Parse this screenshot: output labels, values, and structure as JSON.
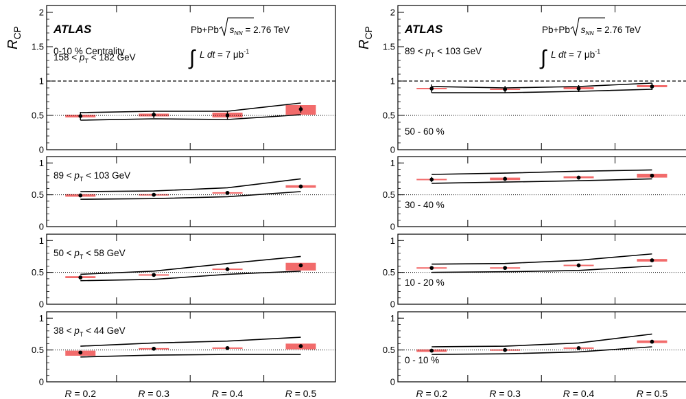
{
  "figure": {
    "experiment": "ATLAS",
    "system": "Pb+Pb",
    "energy_prefix": "s",
    "energy_sub": "NN",
    "energy_value": "= 2.76 TeV",
    "lumi_text": "L dt = 7 μb",
    "lumi_exp": "-1",
    "ylabel_main": "R",
    "ylabel_sub": "CP",
    "x_labels_prefix": "R",
    "left_header": "0-10 % Centrality",
    "right_header_pt": "89 < p_T < 103 GeV"
  },
  "chart_data": [
    {
      "type": "scatter",
      "column": "left",
      "label": "158 < p_T < 182 GeV",
      "categories": [
        "= 0.2",
        "= 0.3",
        "= 0.4",
        "= 0.5"
      ],
      "ylim": [
        0,
        2.1
      ],
      "yticks": [
        0,
        0.5,
        1,
        1.5,
        2
      ],
      "ytick_labels": [
        "0",
        "0.5",
        "1",
        "1.5",
        "2"
      ],
      "values": [
        0.49,
        0.51,
        0.5,
        0.59
      ],
      "stat_err": [
        0.06,
        0.05,
        0.06,
        0.05
      ],
      "sys_box": [
        [
          0.47,
          0.51
        ],
        [
          0.485,
          0.525
        ],
        [
          0.47,
          0.54
        ],
        [
          0.51,
          0.65
        ]
      ],
      "band_upper": [
        0.54,
        0.56,
        0.56,
        0.68
      ],
      "band_lower": [
        0.43,
        0.45,
        0.44,
        0.51
      ],
      "reference_lines": {
        "dashed": 1.0,
        "dotted": 0.5
      }
    },
    {
      "type": "scatter",
      "column": "left",
      "label": "89 < p_T < 103 GeV",
      "categories": [
        "= 0.2",
        "= 0.3",
        "= 0.4",
        "= 0.5"
      ],
      "ylim": [
        0,
        1.1
      ],
      "yticks": [
        0,
        0.5,
        1
      ],
      "ytick_labels": [
        "0",
        "0.5",
        "1"
      ],
      "values": [
        0.49,
        0.5,
        0.53,
        0.63
      ],
      "stat_err": [
        0.01,
        0.01,
        0.01,
        0.01
      ],
      "sys_box": [
        [
          0.47,
          0.51
        ],
        [
          0.49,
          0.51
        ],
        [
          0.52,
          0.54
        ],
        [
          0.61,
          0.65
        ]
      ],
      "band_upper": [
        0.55,
        0.56,
        0.61,
        0.75
      ],
      "band_lower": [
        0.43,
        0.44,
        0.47,
        0.55
      ],
      "reference_lines": {
        "dotted": 0.5
      }
    },
    {
      "type": "scatter",
      "column": "left",
      "label": "50 < p_T < 58 GeV",
      "categories": [
        "= 0.2",
        "= 0.3",
        "= 0.4",
        "= 0.5"
      ],
      "ylim": [
        0,
        1.1
      ],
      "yticks": [
        0,
        0.5,
        1
      ],
      "ytick_labels": [
        "0",
        "0.5",
        "1"
      ],
      "values": [
        0.42,
        0.46,
        0.55,
        0.61
      ],
      "stat_err": [
        0.01,
        0.01,
        0.01,
        0.01
      ],
      "sys_box": [
        [
          0.41,
          0.44
        ],
        [
          0.45,
          0.47
        ],
        [
          0.54,
          0.56
        ],
        [
          0.53,
          0.65
        ]
      ],
      "band_upper": [
        0.47,
        0.52,
        0.64,
        0.75
      ],
      "band_lower": [
        0.37,
        0.39,
        0.47,
        0.52
      ],
      "reference_lines": {
        "dotted": 0.5
      }
    },
    {
      "type": "scatter",
      "column": "left",
      "label": "38 < p_T < 44 GeV",
      "categories": [
        "= 0.2",
        "= 0.3",
        "= 0.4",
        "= 0.5"
      ],
      "ylim": [
        0,
        1.1
      ],
      "yticks": [
        0,
        0.5,
        1
      ],
      "ytick_labels": [
        "0",
        "0.5",
        "1"
      ],
      "values": [
        0.46,
        0.52,
        0.53,
        0.56
      ],
      "stat_err": [
        0.01,
        0.01,
        0.01,
        0.01
      ],
      "sys_box": [
        [
          0.41,
          0.49
        ],
        [
          0.51,
          0.53
        ],
        [
          0.52,
          0.54
        ],
        [
          0.51,
          0.6
        ]
      ],
      "band_upper": [
        0.56,
        0.61,
        0.64,
        0.7
      ],
      "band_lower": [
        0.39,
        0.42,
        0.43,
        0.43
      ],
      "reference_lines": {
        "dotted": 0.5
      }
    },
    {
      "type": "scatter",
      "column": "right",
      "label": "50 - 60 %",
      "categories": [
        "= 0.2",
        "= 0.3",
        "= 0.4",
        "= 0.5"
      ],
      "ylim": [
        0,
        2.1
      ],
      "yticks": [
        0,
        0.5,
        1,
        1.5,
        2
      ],
      "ytick_labels": [
        "0",
        "0.5",
        "1",
        "1.5",
        "2"
      ],
      "values": [
        0.89,
        0.88,
        0.89,
        0.92
      ],
      "stat_err": [
        0.06,
        0.05,
        0.05,
        0.05
      ],
      "sys_box": [
        [
          0.88,
          0.9
        ],
        [
          0.87,
          0.89
        ],
        [
          0.88,
          0.91
        ],
        [
          0.91,
          0.94
        ]
      ],
      "band_upper": [
        0.92,
        0.9,
        0.92,
        0.97
      ],
      "band_lower": [
        0.83,
        0.83,
        0.85,
        0.88
      ],
      "reference_lines": {
        "dashed": 1.0,
        "dotted": 0.5
      }
    },
    {
      "type": "scatter",
      "column": "right",
      "label": "30 - 40 %",
      "categories": [
        "= 0.2",
        "= 0.3",
        "= 0.4",
        "= 0.5"
      ],
      "ylim": [
        0,
        1.1
      ],
      "yticks": [
        0,
        0.5,
        1
      ],
      "ytick_labels": [
        "0",
        "0.5",
        "1"
      ],
      "values": [
        0.74,
        0.75,
        0.77,
        0.8
      ],
      "stat_err": [
        0.04,
        0.03,
        0.03,
        0.03
      ],
      "sys_box": [
        [
          0.73,
          0.75
        ],
        [
          0.73,
          0.77
        ],
        [
          0.76,
          0.79
        ],
        [
          0.77,
          0.83
        ]
      ],
      "band_upper": [
        0.82,
        0.84,
        0.87,
        0.89
      ],
      "band_lower": [
        0.68,
        0.7,
        0.72,
        0.75
      ],
      "reference_lines": {
        "dotted": 0.5
      }
    },
    {
      "type": "scatter",
      "column": "right",
      "label": "10 - 20 %",
      "categories": [
        "= 0.2",
        "= 0.3",
        "= 0.4",
        "= 0.5"
      ],
      "ylim": [
        0,
        1.1
      ],
      "yticks": [
        0,
        0.5,
        1
      ],
      "ytick_labels": [
        "0",
        "0.5",
        "1"
      ],
      "values": [
        0.57,
        0.57,
        0.61,
        0.69
      ],
      "stat_err": [
        0.02,
        0.02,
        0.02,
        0.02
      ],
      "sys_box": [
        [
          0.56,
          0.58
        ],
        [
          0.56,
          0.58
        ],
        [
          0.6,
          0.62
        ],
        [
          0.67,
          0.71
        ]
      ],
      "band_upper": [
        0.63,
        0.64,
        0.69,
        0.79
      ],
      "band_lower": [
        0.5,
        0.51,
        0.53,
        0.6
      ],
      "reference_lines": {
        "dotted": 0.5
      }
    },
    {
      "type": "scatter",
      "column": "right",
      "label": "0 - 10 %",
      "categories": [
        "= 0.2",
        "= 0.3",
        "= 0.4",
        "= 0.5"
      ],
      "ylim": [
        0,
        1.1
      ],
      "yticks": [
        0,
        0.5,
        1
      ],
      "ytick_labels": [
        "0",
        "0.5",
        "1"
      ],
      "values": [
        0.49,
        0.5,
        0.53,
        0.63
      ],
      "stat_err": [
        0.01,
        0.01,
        0.01,
        0.01
      ],
      "sys_box": [
        [
          0.47,
          0.51
        ],
        [
          0.49,
          0.51
        ],
        [
          0.52,
          0.54
        ],
        [
          0.61,
          0.65
        ]
      ],
      "band_upper": [
        0.55,
        0.56,
        0.61,
        0.75
      ],
      "band_lower": [
        0.43,
        0.44,
        0.47,
        0.55
      ],
      "reference_lines": {
        "dotted": 0.5
      }
    }
  ]
}
